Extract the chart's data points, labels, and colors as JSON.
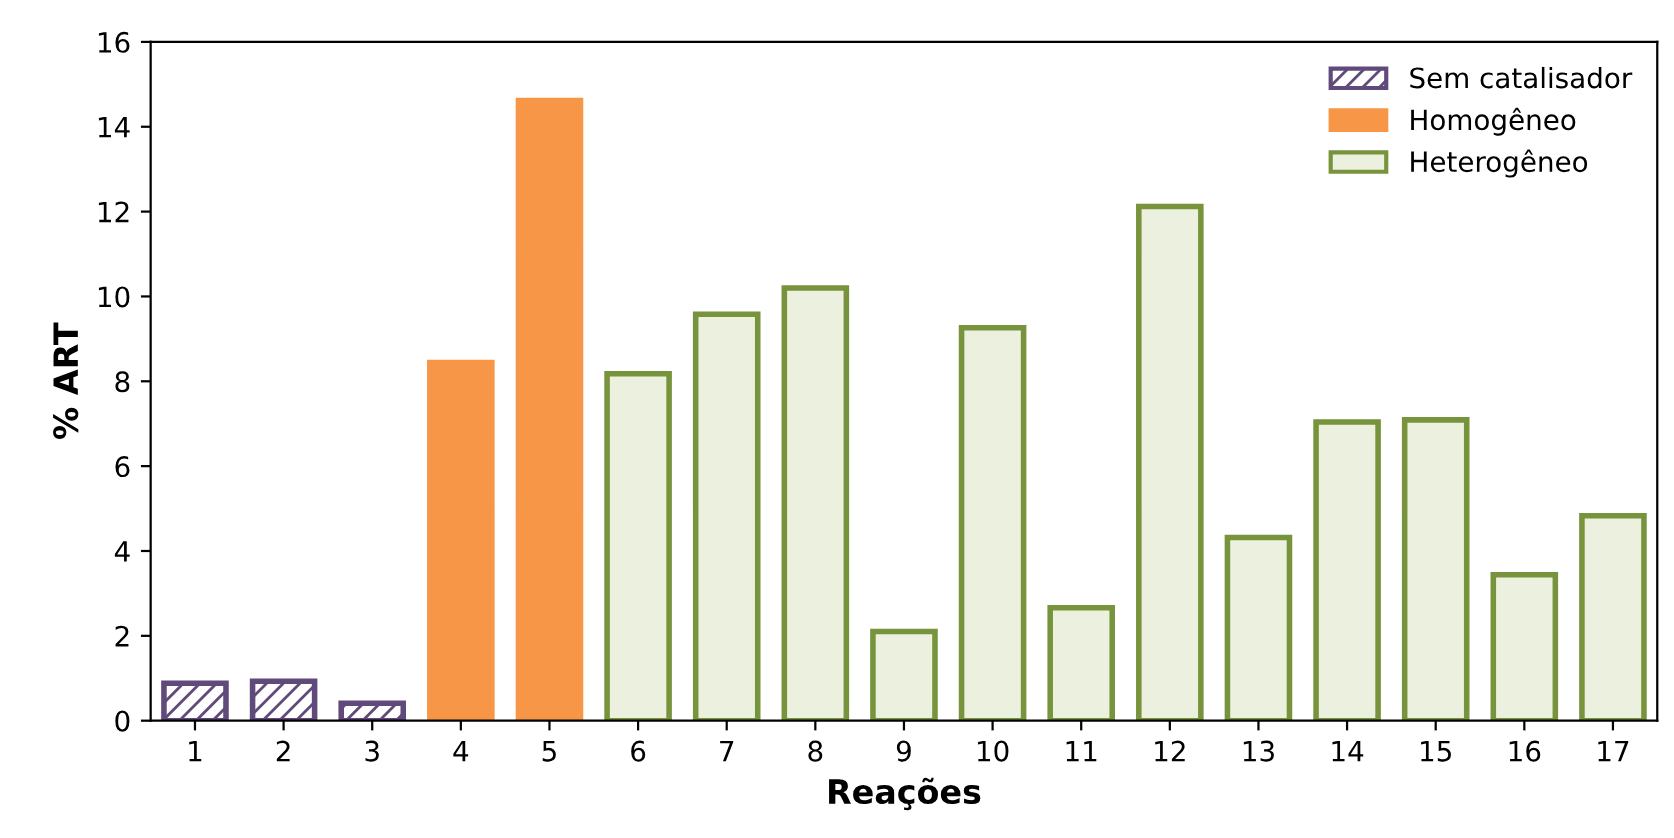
{
  "chart_data": {
    "type": "bar",
    "xlabel": "Reações",
    "ylabel": "% ART",
    "categories": [
      "1",
      "2",
      "3",
      "4",
      "5",
      "6",
      "7",
      "8",
      "9",
      "10",
      "11",
      "12",
      "13",
      "14",
      "15",
      "16",
      "17"
    ],
    "series": [
      {
        "name": "Sem catalisador",
        "color": "#604a7b",
        "values": [
          0.88,
          0.93,
          0.41,
          null,
          null,
          null,
          null,
          null,
          null,
          null,
          null,
          null,
          null,
          null,
          null,
          null,
          null
        ]
      },
      {
        "name": "Homogêneo",
        "color": "#f79646",
        "values": [
          null,
          null,
          null,
          8.44,
          14.62,
          null,
          null,
          null,
          null,
          null,
          null,
          null,
          null,
          null,
          null,
          null,
          null
        ]
      },
      {
        "name": "Heterogêneo",
        "color": "#77933c",
        "values": [
          null,
          null,
          null,
          null,
          null,
          8.18,
          9.58,
          10.2,
          2.1,
          9.26,
          2.66,
          12.12,
          4.32,
          7.04,
          7.09,
          3.44,
          4.83
        ]
      }
    ],
    "ylim": [
      0,
      16
    ],
    "yticks": [
      0,
      2,
      4,
      6,
      8,
      10,
      12,
      14,
      16
    ],
    "grid": false,
    "legend": "top right"
  }
}
